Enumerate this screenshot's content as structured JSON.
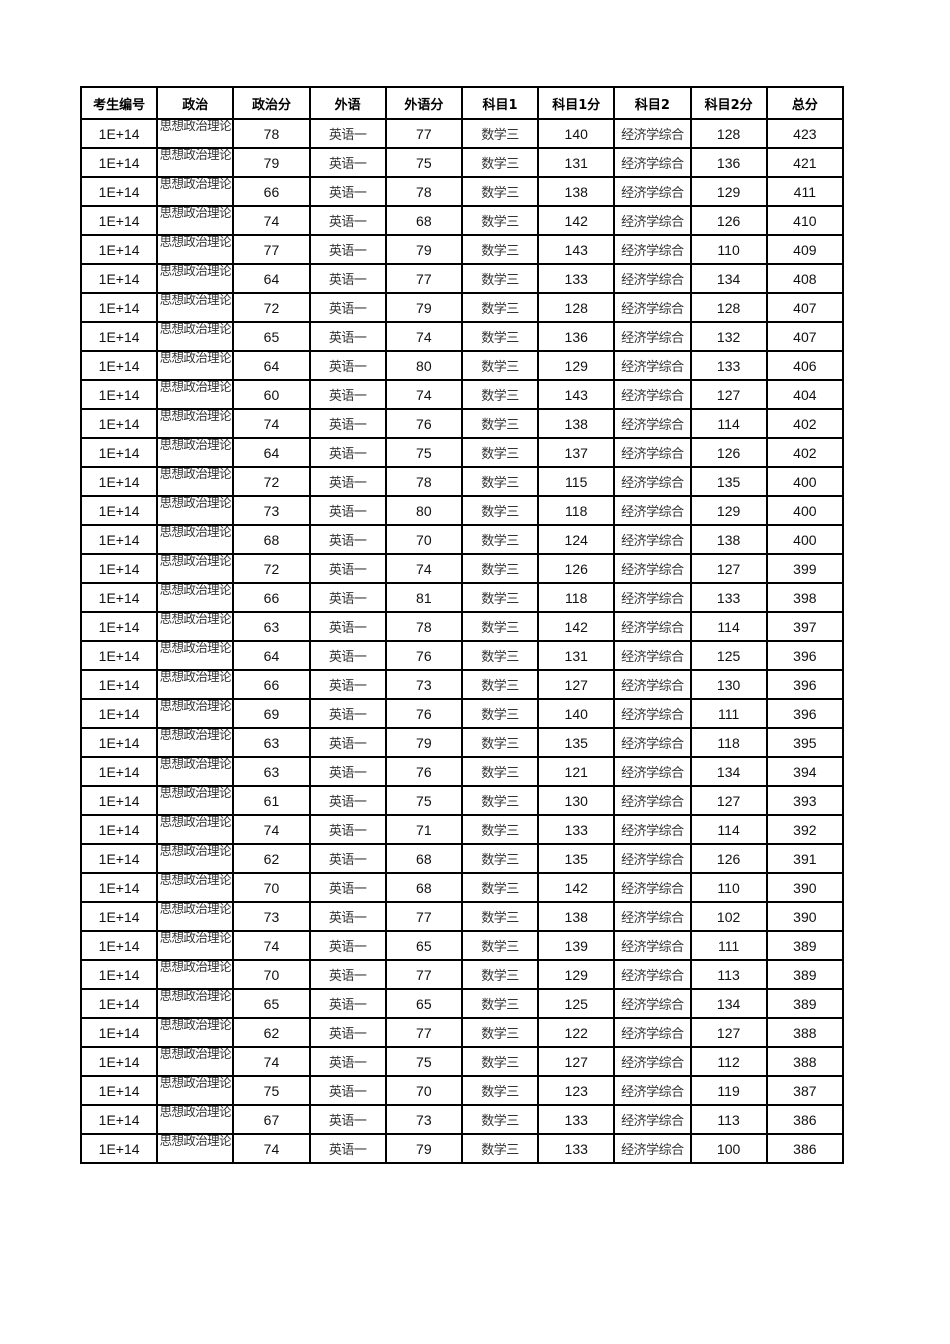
{
  "table": {
    "headers": [
      "考生编号",
      "政治",
      "政治分",
      "外语",
      "外语分",
      "科目1",
      "科目1分",
      "科目2",
      "科目2分",
      "总分"
    ],
    "rows": [
      [
        "1E+14",
        "思想政治理论",
        "78",
        "英语一",
        "77",
        "数学三",
        "140",
        "经济学综合",
        "128",
        "423"
      ],
      [
        "1E+14",
        "思想政治理论",
        "79",
        "英语一",
        "75",
        "数学三",
        "131",
        "经济学综合",
        "136",
        "421"
      ],
      [
        "1E+14",
        "思想政治理论",
        "66",
        "英语一",
        "78",
        "数学三",
        "138",
        "经济学综合",
        "129",
        "411"
      ],
      [
        "1E+14",
        "思想政治理论",
        "74",
        "英语一",
        "68",
        "数学三",
        "142",
        "经济学综合",
        "126",
        "410"
      ],
      [
        "1E+14",
        "思想政治理论",
        "77",
        "英语一",
        "79",
        "数学三",
        "143",
        "经济学综合",
        "110",
        "409"
      ],
      [
        "1E+14",
        "思想政治理论",
        "64",
        "英语一",
        "77",
        "数学三",
        "133",
        "经济学综合",
        "134",
        "408"
      ],
      [
        "1E+14",
        "思想政治理论",
        "72",
        "英语一",
        "79",
        "数学三",
        "128",
        "经济学综合",
        "128",
        "407"
      ],
      [
        "1E+14",
        "思想政治理论",
        "65",
        "英语一",
        "74",
        "数学三",
        "136",
        "经济学综合",
        "132",
        "407"
      ],
      [
        "1E+14",
        "思想政治理论",
        "64",
        "英语一",
        "80",
        "数学三",
        "129",
        "经济学综合",
        "133",
        "406"
      ],
      [
        "1E+14",
        "思想政治理论",
        "60",
        "英语一",
        "74",
        "数学三",
        "143",
        "经济学综合",
        "127",
        "404"
      ],
      [
        "1E+14",
        "思想政治理论",
        "74",
        "英语一",
        "76",
        "数学三",
        "138",
        "经济学综合",
        "114",
        "402"
      ],
      [
        "1E+14",
        "思想政治理论",
        "64",
        "英语一",
        "75",
        "数学三",
        "137",
        "经济学综合",
        "126",
        "402"
      ],
      [
        "1E+14",
        "思想政治理论",
        "72",
        "英语一",
        "78",
        "数学三",
        "115",
        "经济学综合",
        "135",
        "400"
      ],
      [
        "1E+14",
        "思想政治理论",
        "73",
        "英语一",
        "80",
        "数学三",
        "118",
        "经济学综合",
        "129",
        "400"
      ],
      [
        "1E+14",
        "思想政治理论",
        "68",
        "英语一",
        "70",
        "数学三",
        "124",
        "经济学综合",
        "138",
        "400"
      ],
      [
        "1E+14",
        "思想政治理论",
        "72",
        "英语一",
        "74",
        "数学三",
        "126",
        "经济学综合",
        "127",
        "399"
      ],
      [
        "1E+14",
        "思想政治理论",
        "66",
        "英语一",
        "81",
        "数学三",
        "118",
        "经济学综合",
        "133",
        "398"
      ],
      [
        "1E+14",
        "思想政治理论",
        "63",
        "英语一",
        "78",
        "数学三",
        "142",
        "经济学综合",
        "114",
        "397"
      ],
      [
        "1E+14",
        "思想政治理论",
        "64",
        "英语一",
        "76",
        "数学三",
        "131",
        "经济学综合",
        "125",
        "396"
      ],
      [
        "1E+14",
        "思想政治理论",
        "66",
        "英语一",
        "73",
        "数学三",
        "127",
        "经济学综合",
        "130",
        "396"
      ],
      [
        "1E+14",
        "思想政治理论",
        "69",
        "英语一",
        "76",
        "数学三",
        "140",
        "经济学综合",
        "111",
        "396"
      ],
      [
        "1E+14",
        "思想政治理论",
        "63",
        "英语一",
        "79",
        "数学三",
        "135",
        "经济学综合",
        "118",
        "395"
      ],
      [
        "1E+14",
        "思想政治理论",
        "63",
        "英语一",
        "76",
        "数学三",
        "121",
        "经济学综合",
        "134",
        "394"
      ],
      [
        "1E+14",
        "思想政治理论",
        "61",
        "英语一",
        "75",
        "数学三",
        "130",
        "经济学综合",
        "127",
        "393"
      ],
      [
        "1E+14",
        "思想政治理论",
        "74",
        "英语一",
        "71",
        "数学三",
        "133",
        "经济学综合",
        "114",
        "392"
      ],
      [
        "1E+14",
        "思想政治理论",
        "62",
        "英语一",
        "68",
        "数学三",
        "135",
        "经济学综合",
        "126",
        "391"
      ],
      [
        "1E+14",
        "思想政治理论",
        "70",
        "英语一",
        "68",
        "数学三",
        "142",
        "经济学综合",
        "110",
        "390"
      ],
      [
        "1E+14",
        "思想政治理论",
        "73",
        "英语一",
        "77",
        "数学三",
        "138",
        "经济学综合",
        "102",
        "390"
      ],
      [
        "1E+14",
        "思想政治理论",
        "74",
        "英语一",
        "65",
        "数学三",
        "139",
        "经济学综合",
        "111",
        "389"
      ],
      [
        "1E+14",
        "思想政治理论",
        "70",
        "英语一",
        "77",
        "数学三",
        "129",
        "经济学综合",
        "113",
        "389"
      ],
      [
        "1E+14",
        "思想政治理论",
        "65",
        "英语一",
        "65",
        "数学三",
        "125",
        "经济学综合",
        "134",
        "389"
      ],
      [
        "1E+14",
        "思想政治理论",
        "62",
        "英语一",
        "77",
        "数学三",
        "122",
        "经济学综合",
        "127",
        "388"
      ],
      [
        "1E+14",
        "思想政治理论",
        "74",
        "英语一",
        "75",
        "数学三",
        "127",
        "经济学综合",
        "112",
        "388"
      ],
      [
        "1E+14",
        "思想政治理论",
        "75",
        "英语一",
        "70",
        "数学三",
        "123",
        "经济学综合",
        "119",
        "387"
      ],
      [
        "1E+14",
        "思想政治理论",
        "67",
        "英语一",
        "73",
        "数学三",
        "133",
        "经济学综合",
        "113",
        "386"
      ],
      [
        "1E+14",
        "思想政治理论",
        "74",
        "英语一",
        "79",
        "数学三",
        "133",
        "经济学综合",
        "100",
        "386"
      ]
    ]
  }
}
